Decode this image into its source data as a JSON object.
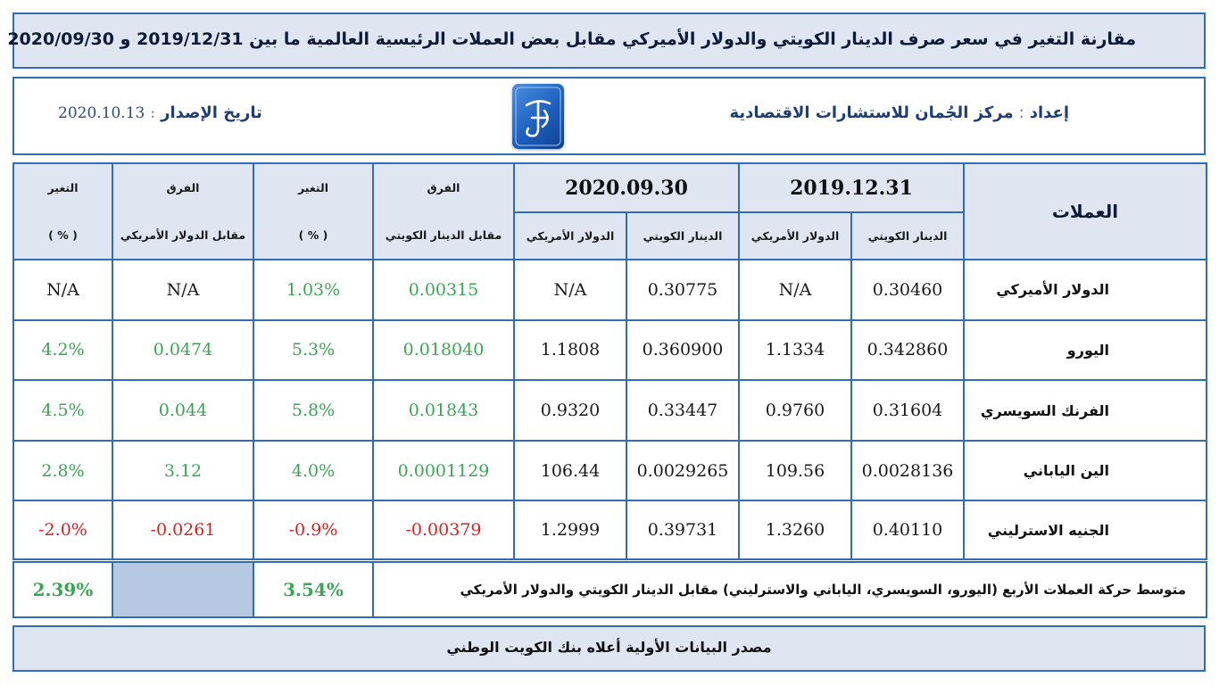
{
  "title": "مقارنة التغير في سعر صرف الدينار الكويتي والدولار الأميركي مقابل بعض العملات الرئيسية العالمية ما بين 2019/12/31 و 2020/09/30",
  "header": {
    "prepared_label": "إعداد",
    "prepared_sep": ":",
    "prepared_by": "مركز الجُمان للاستشارات الاقتصادية",
    "issue_label": "تاريخ الإصدار",
    "issue_sep": ":",
    "issue_date": "2020.10.13",
    "logo_color": "#1d5fbf"
  },
  "table": {
    "currencies_header": "العملات",
    "date1": "2019.12.31",
    "date2": "2020.09.30",
    "kd_label": "الدينار الكويتي",
    "usd_label": "الدولار الأمريكي",
    "diff_label": "الفرق",
    "diff_vs_kd": "مقابل الدينار الكويتي",
    "diff_vs_usd": "مقابل الدولار الأمريكي",
    "change_label": "التغير",
    "pct_label": "( % )",
    "rows": [
      {
        "name": "الدولار الأميركي",
        "kd1": "0.30460",
        "usd1": "N/A",
        "kd2": "0.30775",
        "usd2": "N/A",
        "diff_kd": "0.00315",
        "chg_kd": "1.03%",
        "diff_usd": "N/A",
        "chg_usd": "N/A",
        "sign_kd": "pos",
        "sign_usd": "none"
      },
      {
        "name": "اليورو",
        "kd1": "0.342860",
        "usd1": "1.1334",
        "kd2": "0.360900",
        "usd2": "1.1808",
        "diff_kd": "0.018040",
        "chg_kd": "5.3%",
        "diff_usd": "0.0474",
        "chg_usd": "4.2%",
        "sign_kd": "pos",
        "sign_usd": "pos"
      },
      {
        "name": "الفرنك السويسري",
        "kd1": "0.31604",
        "usd1": "0.9760",
        "kd2": "0.33447",
        "usd2": "0.9320",
        "diff_kd": "0.01843",
        "chg_kd": "5.8%",
        "diff_usd": "0.044",
        "chg_usd": "4.5%",
        "sign_kd": "pos",
        "sign_usd": "pos"
      },
      {
        "name": "الين الياباني",
        "kd1": "0.0028136",
        "usd1": "109.56",
        "kd2": "0.0029265",
        "usd2": "106.44",
        "diff_kd": "0.0001129",
        "chg_kd": "4.0%",
        "diff_usd": "3.12",
        "chg_usd": "2.8%",
        "sign_kd": "pos",
        "sign_usd": "pos"
      },
      {
        "name": "الجنيه الاسترليني",
        "kd1": "0.40110",
        "usd1": "1.3260",
        "kd2": "0.39731",
        "usd2": "1.2999",
        "diff_kd": "-0.00379",
        "chg_kd": "-0.9%",
        "diff_usd": "-0.0261",
        "chg_usd": "-2.0%",
        "sign_kd": "neg",
        "sign_usd": "neg"
      }
    ]
  },
  "summary": {
    "label": "متوسط حركة العملات الأربع (اليورو، السويسري، الياباني والاسترليني) مقابل الدينار الكويتي والدولار الأمريكي",
    "avg_kd": "3.54%",
    "avg_usd": "2.39%"
  },
  "source": "مصدر البيانات الأولية أعلاه بنك الكويت الوطني",
  "colors": {
    "border": "#2f6db5",
    "header_bg": "#dfe6f2",
    "positive": "#3aa655",
    "negative": "#d42020",
    "summary_empty": "#b7c8e2"
  }
}
